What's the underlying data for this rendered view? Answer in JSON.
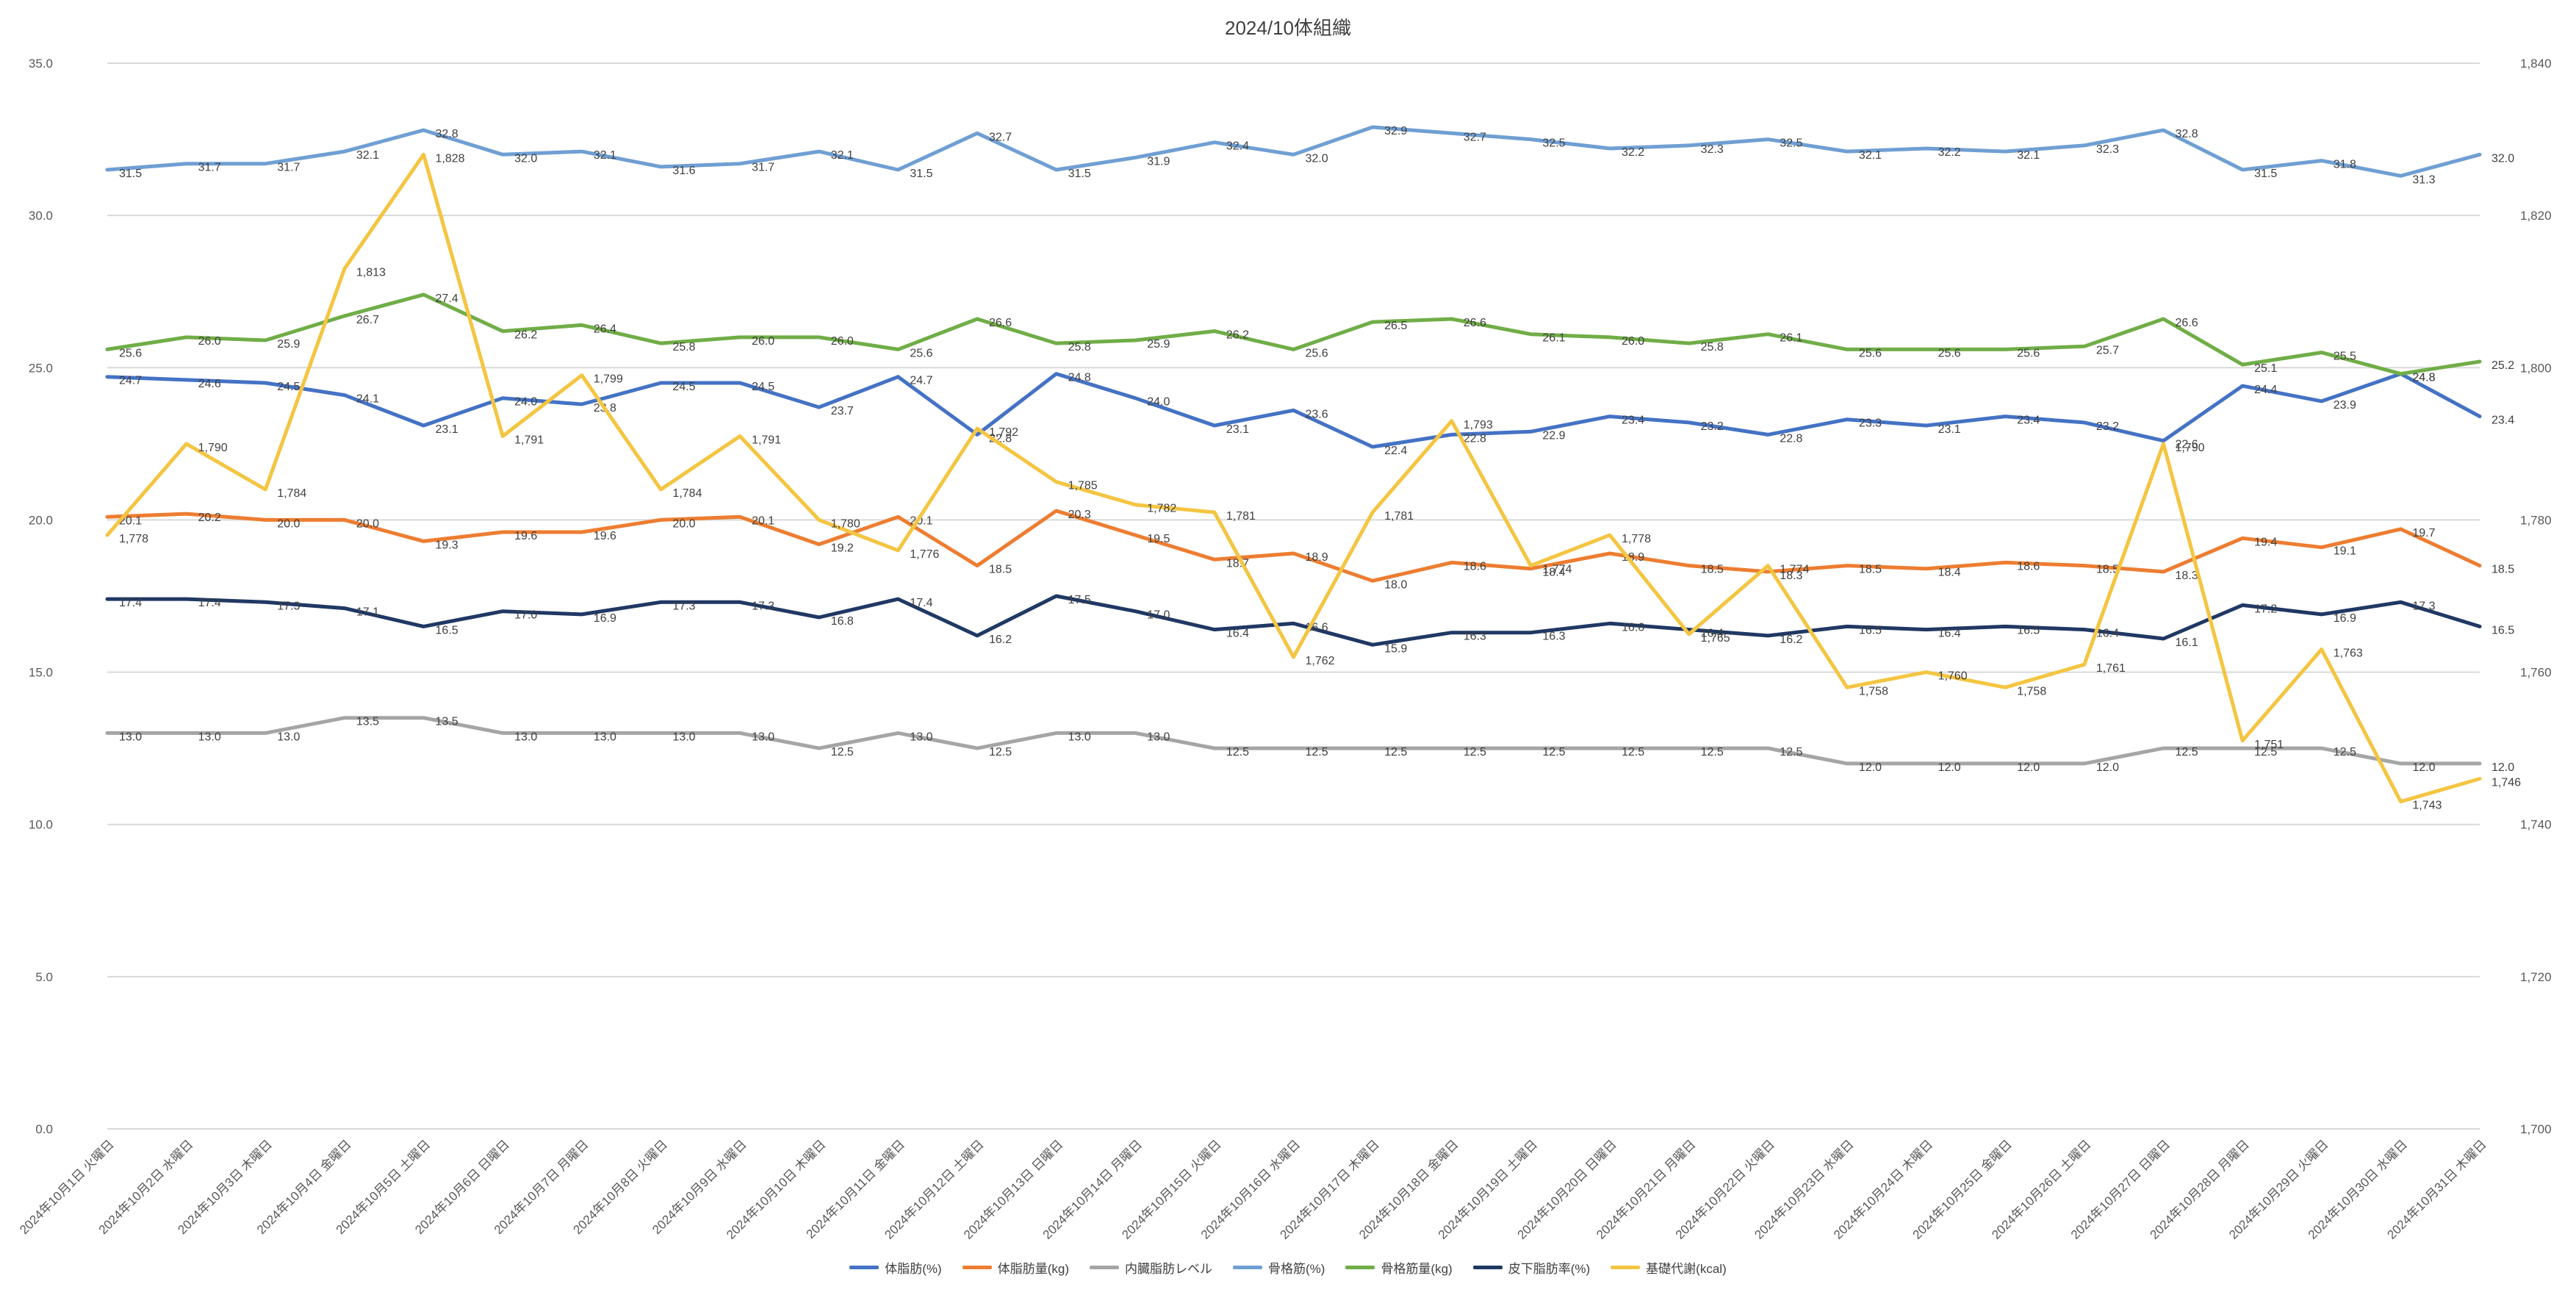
{
  "chart_data": {
    "type": "line",
    "title": "2024/10体組織",
    "xlabel": "",
    "ylabel": "",
    "ylim": [
      0,
      35
    ],
    "y2lim": [
      1700,
      1840
    ],
    "y_ticks": [
      "0.0",
      "5.0",
      "10.0",
      "15.0",
      "20.0",
      "25.0",
      "30.0",
      "35.0"
    ],
    "y2_ticks": [
      "1,700",
      "1,720",
      "1,740",
      "1,760",
      "1,780",
      "1,800",
      "1,820",
      "1,840"
    ],
    "categories": [
      "2024年10月1日 火曜日",
      "2024年10月2日 水曜日",
      "2024年10月3日 木曜日",
      "2024年10月4日 金曜日",
      "2024年10月5日 土曜日",
      "2024年10月6日 日曜日",
      "2024年10月7日 月曜日",
      "2024年10月8日 火曜日",
      "2024年10月9日 水曜日",
      "2024年10月10日 木曜日",
      "2024年10月11日 金曜日",
      "2024年10月12日 土曜日",
      "2024年10月13日 日曜日",
      "2024年10月14日 月曜日",
      "2024年10月15日 火曜日",
      "2024年10月16日 水曜日",
      "2024年10月17日 木曜日",
      "2024年10月18日 金曜日",
      "2024年10月19日 土曜日",
      "2024年10月20日 日曜日",
      "2024年10月21日 月曜日",
      "2024年10月22日 火曜日",
      "2024年10月23日 水曜日",
      "2024年10月24日 木曜日",
      "2024年10月25日 金曜日",
      "2024年10月26日 土曜日",
      "2024年10月27日 日曜日",
      "2024年10月28日 月曜日",
      "2024年10月29日 火曜日",
      "2024年10月30日 水曜日",
      "2024年10月31日 木曜日"
    ],
    "series": [
      {
        "name": "体脂肪(%)",
        "color": "#4472C4",
        "axis": "left",
        "decimals": 1,
        "values": [
          24.7,
          24.6,
          24.5,
          24.1,
          23.1,
          24.0,
          23.8,
          24.5,
          24.5,
          23.7,
          24.7,
          22.8,
          24.8,
          24.0,
          23.1,
          23.6,
          22.4,
          22.8,
          22.9,
          23.4,
          23.2,
          22.8,
          23.3,
          23.1,
          23.4,
          23.2,
          22.6,
          24.4,
          23.9,
          24.8,
          23.4
        ]
      },
      {
        "name": "体脂肪量(kg)",
        "color": "#ED7D31",
        "axis": "left",
        "decimals": 1,
        "values": [
          20.1,
          20.2,
          20.0,
          20.0,
          19.3,
          19.6,
          19.6,
          20.0,
          20.1,
          19.2,
          20.1,
          18.5,
          20.3,
          19.5,
          18.7,
          18.9,
          18.0,
          18.6,
          18.4,
          18.9,
          18.5,
          18.3,
          18.5,
          18.4,
          18.6,
          18.5,
          18.3,
          19.4,
          19.1,
          19.7,
          18.5
        ]
      },
      {
        "name": "内臓脂肪レベル",
        "color": "#A5A5A5",
        "axis": "left",
        "decimals": 1,
        "values": [
          13.0,
          13.0,
          13.0,
          13.5,
          13.5,
          13.0,
          13.0,
          13.0,
          13.0,
          12.5,
          13.0,
          12.5,
          13.0,
          13.0,
          12.5,
          12.5,
          12.5,
          12.5,
          12.5,
          12.5,
          12.5,
          12.5,
          12.0,
          12.0,
          12.0,
          12.0,
          12.5,
          12.5,
          12.5,
          12.0,
          12.0
        ]
      },
      {
        "name": "骨格筋(%)",
        "color": "#6F9FD3",
        "axis": "left",
        "decimals": 1,
        "values": [
          31.5,
          31.7,
          31.7,
          32.1,
          32.8,
          32.0,
          32.1,
          31.6,
          31.7,
          32.1,
          31.5,
          32.7,
          31.5,
          31.9,
          32.4,
          32.0,
          32.9,
          32.7,
          32.5,
          32.2,
          32.3,
          32.5,
          32.1,
          32.2,
          32.1,
          32.3,
          32.8,
          31.5,
          31.8,
          31.3,
          32.0
        ]
      },
      {
        "name": "骨格筋量(kg)",
        "color": "#70AD47",
        "axis": "left",
        "decimals": 1,
        "values": [
          25.6,
          26.0,
          25.9,
          26.7,
          27.4,
          26.2,
          26.4,
          25.8,
          26.0,
          26.0,
          25.6,
          26.6,
          25.8,
          25.9,
          26.2,
          25.6,
          26.5,
          26.6,
          26.1,
          26.0,
          25.8,
          26.1,
          25.6,
          25.6,
          25.6,
          25.7,
          26.6,
          25.1,
          25.5,
          24.8,
          25.2
        ]
      },
      {
        "name": "皮下脂肪率(%)",
        "color": "#203864",
        "axis": "left",
        "decimals": 1,
        "values": [
          17.4,
          17.4,
          17.3,
          17.1,
          16.5,
          17.0,
          16.9,
          17.3,
          17.3,
          16.8,
          17.4,
          16.2,
          17.5,
          17.0,
          16.4,
          16.6,
          15.9,
          16.3,
          16.3,
          16.6,
          16.4,
          16.2,
          16.5,
          16.4,
          16.5,
          16.4,
          16.1,
          17.2,
          16.9,
          17.3,
          16.5
        ]
      },
      {
        "name": "基礎代謝(kcal)",
        "color": "#F4C542",
        "axis": "right",
        "decimals": 0,
        "values": [
          1778,
          1790,
          1784,
          1813,
          1828,
          1791,
          1799,
          1784,
          1791,
          1780,
          1776,
          1792,
          1785,
          1782,
          1781,
          1762,
          1781,
          1793,
          1774,
          1778,
          1765,
          1774,
          1758,
          1760,
          1758,
          1761,
          1790,
          1751,
          1763,
          1743,
          1746
        ]
      }
    ],
    "legend": "bottom"
  }
}
